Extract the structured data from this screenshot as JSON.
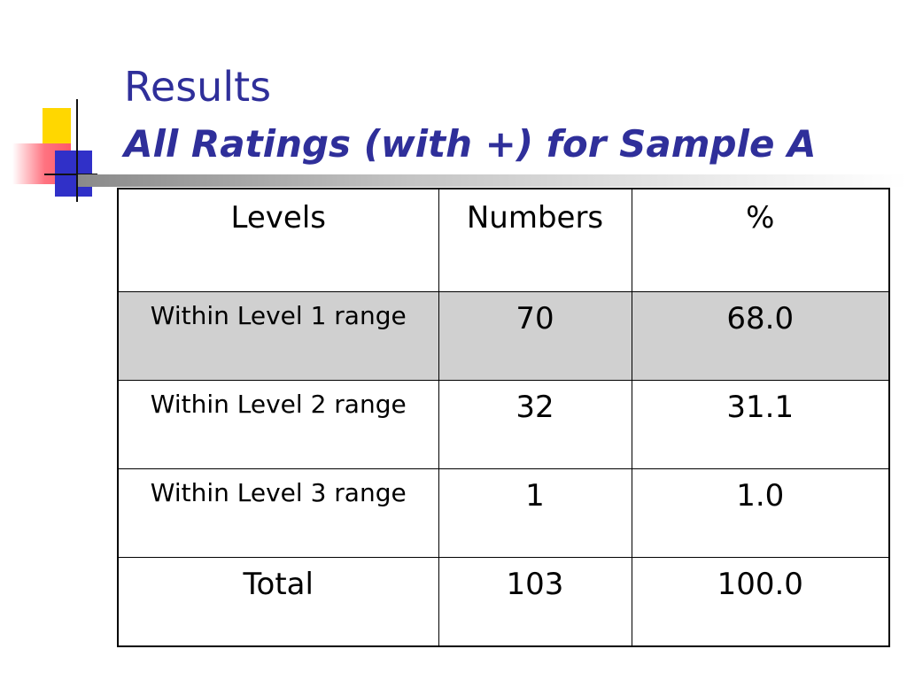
{
  "slide": {
    "title": "Results",
    "subtitle": "All Ratings (with +) for Sample A"
  },
  "decor": {
    "logo_colors": [
      "#ffd700",
      "#ff3b4e",
      "#3030c8"
    ],
    "title_color": "#2f2f9a"
  },
  "table": {
    "headers": [
      "Levels",
      "Numbers",
      "%"
    ],
    "rows": [
      [
        "Within Level 1 range",
        "70",
        "68.0"
      ],
      [
        "Within Level 2 range",
        "32",
        "31.1"
      ],
      [
        "Within Level 3 range",
        "1",
        "1.0"
      ]
    ],
    "total": [
      "Total",
      "103",
      "100.0"
    ],
    "shaded_row": 0
  }
}
